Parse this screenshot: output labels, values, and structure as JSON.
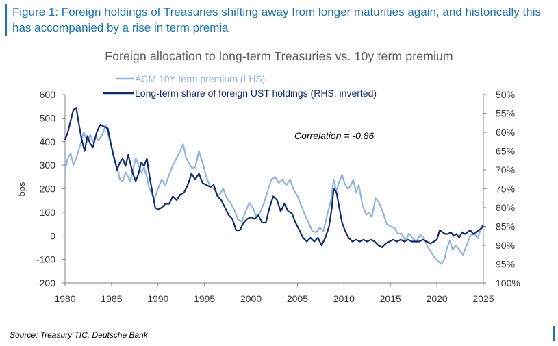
{
  "figure": {
    "caption": "Figure 1: Foreign holdings of Treasuries shifting away from longer maturities again, and historically this has accompanied by a rise in term premia",
    "source": "Source: Treasury TIC, Deutsche Bank"
  },
  "colors": {
    "caption": "#1a73b8",
    "series_light": "#8fb4e3",
    "series_dark": "#102a7a",
    "axis": "#808080",
    "text": "#333333"
  },
  "chart_data": {
    "type": "line",
    "title": "Foreign allocation to long-term Treasuries vs. 10y term premium",
    "ylabel": "bps",
    "xlim": [
      1980,
      2025
    ],
    "ylim": [
      -200,
      600
    ],
    "y2lim": [
      50,
      100
    ],
    "y2_inverted": true,
    "x_ticks": [
      "1980",
      "1985",
      "1990",
      "1995",
      "2000",
      "2005",
      "2010",
      "2015",
      "2020",
      "2025"
    ],
    "y_ticks": [
      "600",
      "500",
      "400",
      "300",
      "200",
      "100",
      "0",
      "-100",
      "-200"
    ],
    "y2_ticks": [
      "50%",
      "55%",
      "60%",
      "65%",
      "70%",
      "75%",
      "80%",
      "85%",
      "90%",
      "95%",
      "100%"
    ],
    "annotation": "Correlation = -0.86",
    "legend_position": "top",
    "series": [
      {
        "name": "ACM 10Y term premium (LHS)",
        "axis": "left",
        "points": [
          [
            1980.0,
            280
          ],
          [
            1980.3,
            330
          ],
          [
            1980.6,
            350
          ],
          [
            1980.9,
            300
          ],
          [
            1981.2,
            330
          ],
          [
            1981.6,
            380
          ],
          [
            1982.0,
            440
          ],
          [
            1982.4,
            400
          ],
          [
            1982.7,
            430
          ],
          [
            1983.0,
            400
          ],
          [
            1983.3,
            420
          ],
          [
            1983.6,
            405
          ],
          [
            1984.0,
            430
          ],
          [
            1984.4,
            470
          ],
          [
            1984.7,
            420
          ],
          [
            1985.0,
            380
          ],
          [
            1985.3,
            320
          ],
          [
            1985.6,
            290
          ],
          [
            1985.9,
            240
          ],
          [
            1986.2,
            230
          ],
          [
            1986.5,
            270
          ],
          [
            1986.8,
            250
          ],
          [
            1987.0,
            230
          ],
          [
            1987.3,
            280
          ],
          [
            1987.6,
            330
          ],
          [
            1987.9,
            300
          ],
          [
            1988.2,
            270
          ],
          [
            1988.5,
            290
          ],
          [
            1988.8,
            250
          ],
          [
            1989.0,
            210
          ],
          [
            1989.3,
            180
          ],
          [
            1989.6,
            155
          ],
          [
            1990.0,
            200
          ],
          [
            1990.4,
            240
          ],
          [
            1990.8,
            215
          ],
          [
            1991.2,
            260
          ],
          [
            1991.6,
            300
          ],
          [
            1992.0,
            330
          ],
          [
            1992.4,
            360
          ],
          [
            1992.7,
            390
          ],
          [
            1993.0,
            335
          ],
          [
            1993.3,
            310
          ],
          [
            1993.6,
            290
          ],
          [
            1994.0,
            290
          ],
          [
            1994.4,
            360
          ],
          [
            1994.8,
            310
          ],
          [
            1995.2,
            250
          ],
          [
            1995.6,
            210
          ],
          [
            1996.0,
            200
          ],
          [
            1996.5,
            170
          ],
          [
            1997.0,
            200
          ],
          [
            1997.4,
            160
          ],
          [
            1997.8,
            140
          ],
          [
            1998.2,
            110
          ],
          [
            1998.6,
            70
          ],
          [
            1999.0,
            60
          ],
          [
            1999.4,
            100
          ],
          [
            1999.8,
            140
          ],
          [
            2000.2,
            120
          ],
          [
            2000.6,
            80
          ],
          [
            2001.0,
            100
          ],
          [
            2001.4,
            140
          ],
          [
            2001.8,
            190
          ],
          [
            2002.2,
            240
          ],
          [
            2002.6,
            250
          ],
          [
            2003.0,
            225
          ],
          [
            2003.4,
            240
          ],
          [
            2003.8,
            215
          ],
          [
            2004.2,
            240
          ],
          [
            2004.6,
            195
          ],
          [
            2005.0,
            170
          ],
          [
            2005.4,
            130
          ],
          [
            2005.8,
            90
          ],
          [
            2006.2,
            55
          ],
          [
            2006.6,
            20
          ],
          [
            2007.0,
            15
          ],
          [
            2007.4,
            35
          ],
          [
            2007.8,
            20
          ],
          [
            2008.2,
            90
          ],
          [
            2008.6,
            150
          ],
          [
            2008.9,
            240
          ],
          [
            2009.2,
            190
          ],
          [
            2009.5,
            230
          ],
          [
            2009.8,
            260
          ],
          [
            2010.1,
            220
          ],
          [
            2010.4,
            200
          ],
          [
            2010.7,
            210
          ],
          [
            2011.0,
            240
          ],
          [
            2011.3,
            185
          ],
          [
            2011.6,
            215
          ],
          [
            2012.0,
            130
          ],
          [
            2012.4,
            90
          ],
          [
            2012.7,
            100
          ],
          [
            2013.0,
            80
          ],
          [
            2013.4,
            160
          ],
          [
            2013.8,
            140
          ],
          [
            2014.2,
            100
          ],
          [
            2014.6,
            50
          ],
          [
            2015.0,
            40
          ],
          [
            2015.4,
            35
          ],
          [
            2015.8,
            10
          ],
          [
            2016.2,
            10
          ],
          [
            2016.6,
            -20
          ],
          [
            2017.0,
            10
          ],
          [
            2017.4,
            -10
          ],
          [
            2017.8,
            -25
          ],
          [
            2018.2,
            5
          ],
          [
            2018.6,
            -10
          ],
          [
            2019.0,
            -45
          ],
          [
            2019.4,
            -70
          ],
          [
            2019.8,
            -95
          ],
          [
            2020.2,
            -110
          ],
          [
            2020.5,
            -120
          ],
          [
            2020.8,
            -100
          ],
          [
            2021.1,
            -50
          ],
          [
            2021.4,
            -20
          ],
          [
            2021.7,
            -60
          ],
          [
            2022.0,
            -40
          ],
          [
            2022.4,
            -60
          ],
          [
            2022.8,
            -80
          ],
          [
            2023.2,
            -40
          ],
          [
            2023.6,
            0
          ],
          [
            2024.0,
            10
          ],
          [
            2024.4,
            -10
          ],
          [
            2024.8,
            40
          ],
          [
            2025.0,
            40
          ]
        ]
      },
      {
        "name": "Long-term share of foreign UST holdings (RHS, inverted)",
        "axis": "right",
        "points": [
          [
            1980.0,
            62
          ],
          [
            1980.3,
            60
          ],
          [
            1980.6,
            57
          ],
          [
            1980.9,
            54
          ],
          [
            1981.2,
            53.5
          ],
          [
            1981.5,
            58
          ],
          [
            1981.8,
            62
          ],
          [
            1982.1,
            65
          ],
          [
            1982.4,
            61
          ],
          [
            1982.7,
            63
          ],
          [
            1983.0,
            64
          ],
          [
            1983.4,
            60
          ],
          [
            1983.8,
            58
          ],
          [
            1984.2,
            58.5
          ],
          [
            1984.6,
            59
          ],
          [
            1985.0,
            64
          ],
          [
            1985.3,
            67
          ],
          [
            1985.6,
            70
          ],
          [
            1985.9,
            68
          ],
          [
            1986.2,
            67
          ],
          [
            1986.5,
            69
          ],
          [
            1986.8,
            66
          ],
          [
            1987.0,
            68
          ],
          [
            1987.3,
            71
          ],
          [
            1987.6,
            73
          ],
          [
            1987.9,
            71
          ],
          [
            1988.2,
            68
          ],
          [
            1988.5,
            69
          ],
          [
            1988.8,
            67
          ],
          [
            1989.1,
            72
          ],
          [
            1989.4,
            76
          ],
          [
            1989.7,
            80
          ],
          [
            1990.0,
            80.5
          ],
          [
            1990.4,
            80
          ],
          [
            1990.8,
            79
          ],
          [
            1991.2,
            79
          ],
          [
            1991.6,
            77
          ],
          [
            1992.0,
            78
          ],
          [
            1992.4,
            76.5
          ],
          [
            1992.8,
            76
          ],
          [
            1993.2,
            74
          ],
          [
            1993.6,
            71
          ],
          [
            1994.0,
            72.5
          ],
          [
            1994.4,
            71
          ],
          [
            1994.8,
            73.5
          ],
          [
            1995.2,
            74
          ],
          [
            1995.6,
            74.5
          ],
          [
            1996.0,
            74
          ],
          [
            1996.4,
            77
          ],
          [
            1996.8,
            78
          ],
          [
            1997.2,
            80
          ],
          [
            1997.6,
            82
          ],
          [
            1998.0,
            83
          ],
          [
            1998.4,
            86
          ],
          [
            1998.8,
            86
          ],
          [
            1999.2,
            84
          ],
          [
            1999.6,
            83
          ],
          [
            2000.0,
            82.5
          ],
          [
            2000.4,
            83
          ],
          [
            2000.8,
            82
          ],
          [
            2001.2,
            84
          ],
          [
            2001.6,
            84
          ],
          [
            2002.0,
            80
          ],
          [
            2002.4,
            77
          ],
          [
            2002.8,
            78
          ],
          [
            2003.2,
            81
          ],
          [
            2003.6,
            79
          ],
          [
            2004.0,
            81
          ],
          [
            2004.4,
            81.5
          ],
          [
            2004.8,
            84
          ],
          [
            2005.2,
            86
          ],
          [
            2005.6,
            88
          ],
          [
            2006.0,
            89
          ],
          [
            2006.4,
            88
          ],
          [
            2006.8,
            89
          ],
          [
            2007.2,
            88
          ],
          [
            2007.6,
            90
          ],
          [
            2008.0,
            88
          ],
          [
            2008.4,
            85
          ],
          [
            2008.7,
            80
          ],
          [
            2008.9,
            75
          ],
          [
            2009.2,
            76
          ],
          [
            2009.5,
            80
          ],
          [
            2009.8,
            84
          ],
          [
            2010.1,
            86
          ],
          [
            2010.5,
            88
          ],
          [
            2010.9,
            89
          ],
          [
            2011.3,
            88.5
          ],
          [
            2011.7,
            89
          ],
          [
            2012.1,
            88.5
          ],
          [
            2012.5,
            89
          ],
          [
            2012.9,
            88.5
          ],
          [
            2013.3,
            89
          ],
          [
            2013.7,
            90
          ],
          [
            2014.1,
            90.5
          ],
          [
            2014.5,
            89.5
          ],
          [
            2014.9,
            89
          ],
          [
            2015.3,
            88.5
          ],
          [
            2015.7,
            89
          ],
          [
            2016.1,
            88.5
          ],
          [
            2016.5,
            89
          ],
          [
            2016.9,
            88.5
          ],
          [
            2017.3,
            89
          ],
          [
            2017.7,
            89
          ],
          [
            2018.1,
            89
          ],
          [
            2018.5,
            88.5
          ],
          [
            2018.9,
            89
          ],
          [
            2019.3,
            89.5
          ],
          [
            2019.7,
            89
          ],
          [
            2020.0,
            88.5
          ],
          [
            2020.3,
            86
          ],
          [
            2020.6,
            86.5
          ],
          [
            2020.9,
            87
          ],
          [
            2021.2,
            87
          ],
          [
            2021.5,
            86.5
          ],
          [
            2021.8,
            87.5
          ],
          [
            2022.1,
            87
          ],
          [
            2022.4,
            88
          ],
          [
            2022.7,
            86.5
          ],
          [
            2023.0,
            87
          ],
          [
            2023.3,
            86.5
          ],
          [
            2023.6,
            86
          ],
          [
            2023.9,
            87
          ],
          [
            2024.2,
            86.5
          ],
          [
            2024.5,
            86
          ],
          [
            2024.8,
            85.5
          ],
          [
            2025.0,
            84.5
          ]
        ]
      }
    ]
  }
}
